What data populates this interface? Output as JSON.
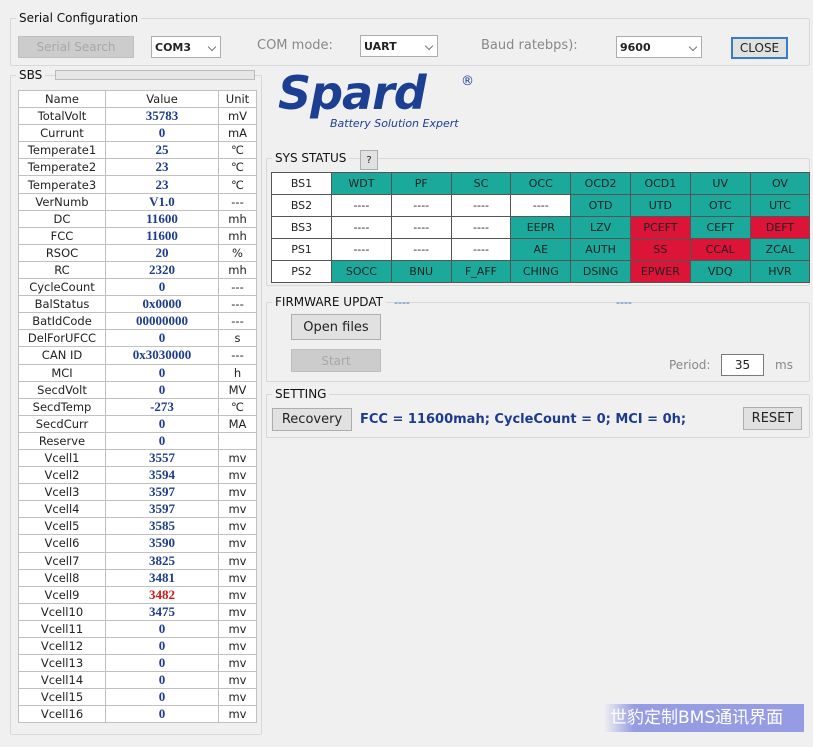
{
  "serial": {
    "title": "Serial Configuration",
    "search_button": "Serial Search",
    "com_port": "COM3",
    "com_mode_label": "COM mode:",
    "com_mode": "UART",
    "baud_label": "Baud ratebps):",
    "baud": "9600",
    "close_button": "CLOSE"
  },
  "sbs": {
    "title": "SBS",
    "headers": [
      "Name",
      "Value",
      "Unit"
    ],
    "rows": [
      {
        "name": "TotalVolt",
        "value": "35783",
        "unit": "mV"
      },
      {
        "name": "Currunt",
        "value": "0",
        "unit": "mA"
      },
      {
        "name": "Temperate1",
        "value": "25",
        "unit": "℃"
      },
      {
        "name": "Temperate2",
        "value": "23",
        "unit": "℃"
      },
      {
        "name": "Temperate3",
        "value": "23",
        "unit": "℃"
      },
      {
        "name": "VerNumb",
        "value": "V1.0",
        "unit": "---"
      },
      {
        "name": "DC",
        "value": "11600",
        "unit": "mh"
      },
      {
        "name": "FCC",
        "value": "11600",
        "unit": "mh"
      },
      {
        "name": "RSOC",
        "value": "20",
        "unit": "%"
      },
      {
        "name": "RC",
        "value": "2320",
        "unit": "mh"
      },
      {
        "name": "CycleCount",
        "value": "0",
        "unit": "---"
      },
      {
        "name": "BalStatus",
        "value": "0x0000",
        "unit": "---"
      },
      {
        "name": "BatIdCode",
        "value": "00000000",
        "unit": "---"
      },
      {
        "name": "DelForUFCC",
        "value": "0",
        "unit": "s"
      },
      {
        "name": "CAN ID",
        "value": "0x3030000",
        "unit": "---"
      },
      {
        "name": "MCI",
        "value": "0",
        "unit": "h"
      },
      {
        "name": "SecdVolt",
        "value": "0",
        "unit": "MV"
      },
      {
        "name": "SecdTemp",
        "value": "-273",
        "unit": "℃"
      },
      {
        "name": "SecdCurr",
        "value": "0",
        "unit": "MA"
      },
      {
        "name": "Reserve",
        "value": "0"
      },
      {
        "name": "Vcell1",
        "value": "3557",
        "unit": "mv"
      },
      {
        "name": "Vcell2",
        "value": "3594",
        "unit": "mv"
      },
      {
        "name": "Vcell3",
        "value": "3597",
        "unit": "mv"
      },
      {
        "name": "Vcell4",
        "value": "3597",
        "unit": "mv"
      },
      {
        "name": "Vcell5",
        "value": "3585",
        "unit": "mv"
      },
      {
        "name": "Vcell6",
        "value": "3590",
        "unit": "mv"
      },
      {
        "name": "Vcell7",
        "value": "3825",
        "unit": "mv"
      },
      {
        "name": "Vcell8",
        "value": "3481",
        "unit": "mv"
      },
      {
        "name": "Vcell9",
        "value": "3482",
        "unit": "mv",
        "color": "#d01818"
      },
      {
        "name": "Vcell10",
        "value": "3475",
        "unit": "mv"
      },
      {
        "name": "Vcell11",
        "value": "0",
        "unit": "mv"
      },
      {
        "name": "Vcell12",
        "value": "0",
        "unit": "mv"
      },
      {
        "name": "Vcell13",
        "value": "0",
        "unit": "mv"
      },
      {
        "name": "Vcell14",
        "value": "0",
        "unit": "mv"
      },
      {
        "name": "Vcell15",
        "value": "0",
        "unit": "mv"
      },
      {
        "name": "Vcell16",
        "value": "0",
        "unit": "mv"
      }
    ]
  },
  "logo": {
    "brand": "Spard",
    "mark": "®",
    "tagline": "Battery Solution Expert"
  },
  "sys_status": {
    "title": "SYS STATUS",
    "help": "?",
    "rows": [
      {
        "label": "BS1",
        "cells": [
          "WDT",
          "PF",
          "SC",
          "OCC",
          "OCD2",
          "OCD1",
          "UV",
          "OV"
        ],
        "colors": [
          "#1aa99b",
          "#1aa99b",
          "#1aa99b",
          "#1aa99b",
          "#1aa99b",
          "#1aa99b",
          "#1aa99b",
          "#1aa99b"
        ]
      },
      {
        "label": "BS2",
        "cells": [
          "----",
          "----",
          "----",
          "----",
          "OTD",
          "UTD",
          "OTC",
          "UTC"
        ],
        "colors": [
          "#ffffff",
          "#ffffff",
          "#ffffff",
          "#ffffff",
          "#1aa99b",
          "#1aa99b",
          "#1aa99b",
          "#1aa99b"
        ]
      },
      {
        "label": "BS3",
        "cells": [
          "----",
          "----",
          "----",
          "EEPR",
          "LZV",
          "PCEFT",
          "CEFT",
          "DEFT"
        ],
        "colors": [
          "#ffffff",
          "#ffffff",
          "#ffffff",
          "#1aa99b",
          "#1aa99b",
          "#dc1438",
          "#1aa99b",
          "#dc1438"
        ]
      },
      {
        "label": "PS1",
        "cells": [
          "----",
          "----",
          "----",
          "AE",
          "AUTH",
          "SS",
          "CCAL",
          "ZCAL"
        ],
        "colors": [
          "#ffffff",
          "#ffffff",
          "#ffffff",
          "#1aa99b",
          "#1aa99b",
          "#dc1438",
          "#dc1438",
          "#1aa99b"
        ]
      },
      {
        "label": "PS2",
        "cells": [
          "SOCC",
          "BNU",
          "F_AFF",
          "CHING",
          "DSING",
          "EPWER",
          "VDQ",
          "HVR"
        ],
        "colors": [
          "#1aa99b",
          "#1aa99b",
          "#1aa99b",
          "#1aa99b",
          "#1aa99b",
          "#dc1438",
          "#1aa99b",
          "#1aa99b"
        ]
      }
    ]
  },
  "firmware": {
    "title": "FIRMWARE UPDAT",
    "progress_left": "----",
    "progress_right": "----",
    "open_button": "Open files",
    "start_button": "Start",
    "period_label": "Period:",
    "period": "35",
    "period_unit": "ms"
  },
  "setting": {
    "title": "SETTING",
    "recovery_button": "Recovery",
    "info": "FCC = 11600mah; CycleCount = 0; MCI = 0h;",
    "reset_button": "RESET"
  },
  "watermark": "世豹定制BMS通讯界面"
}
